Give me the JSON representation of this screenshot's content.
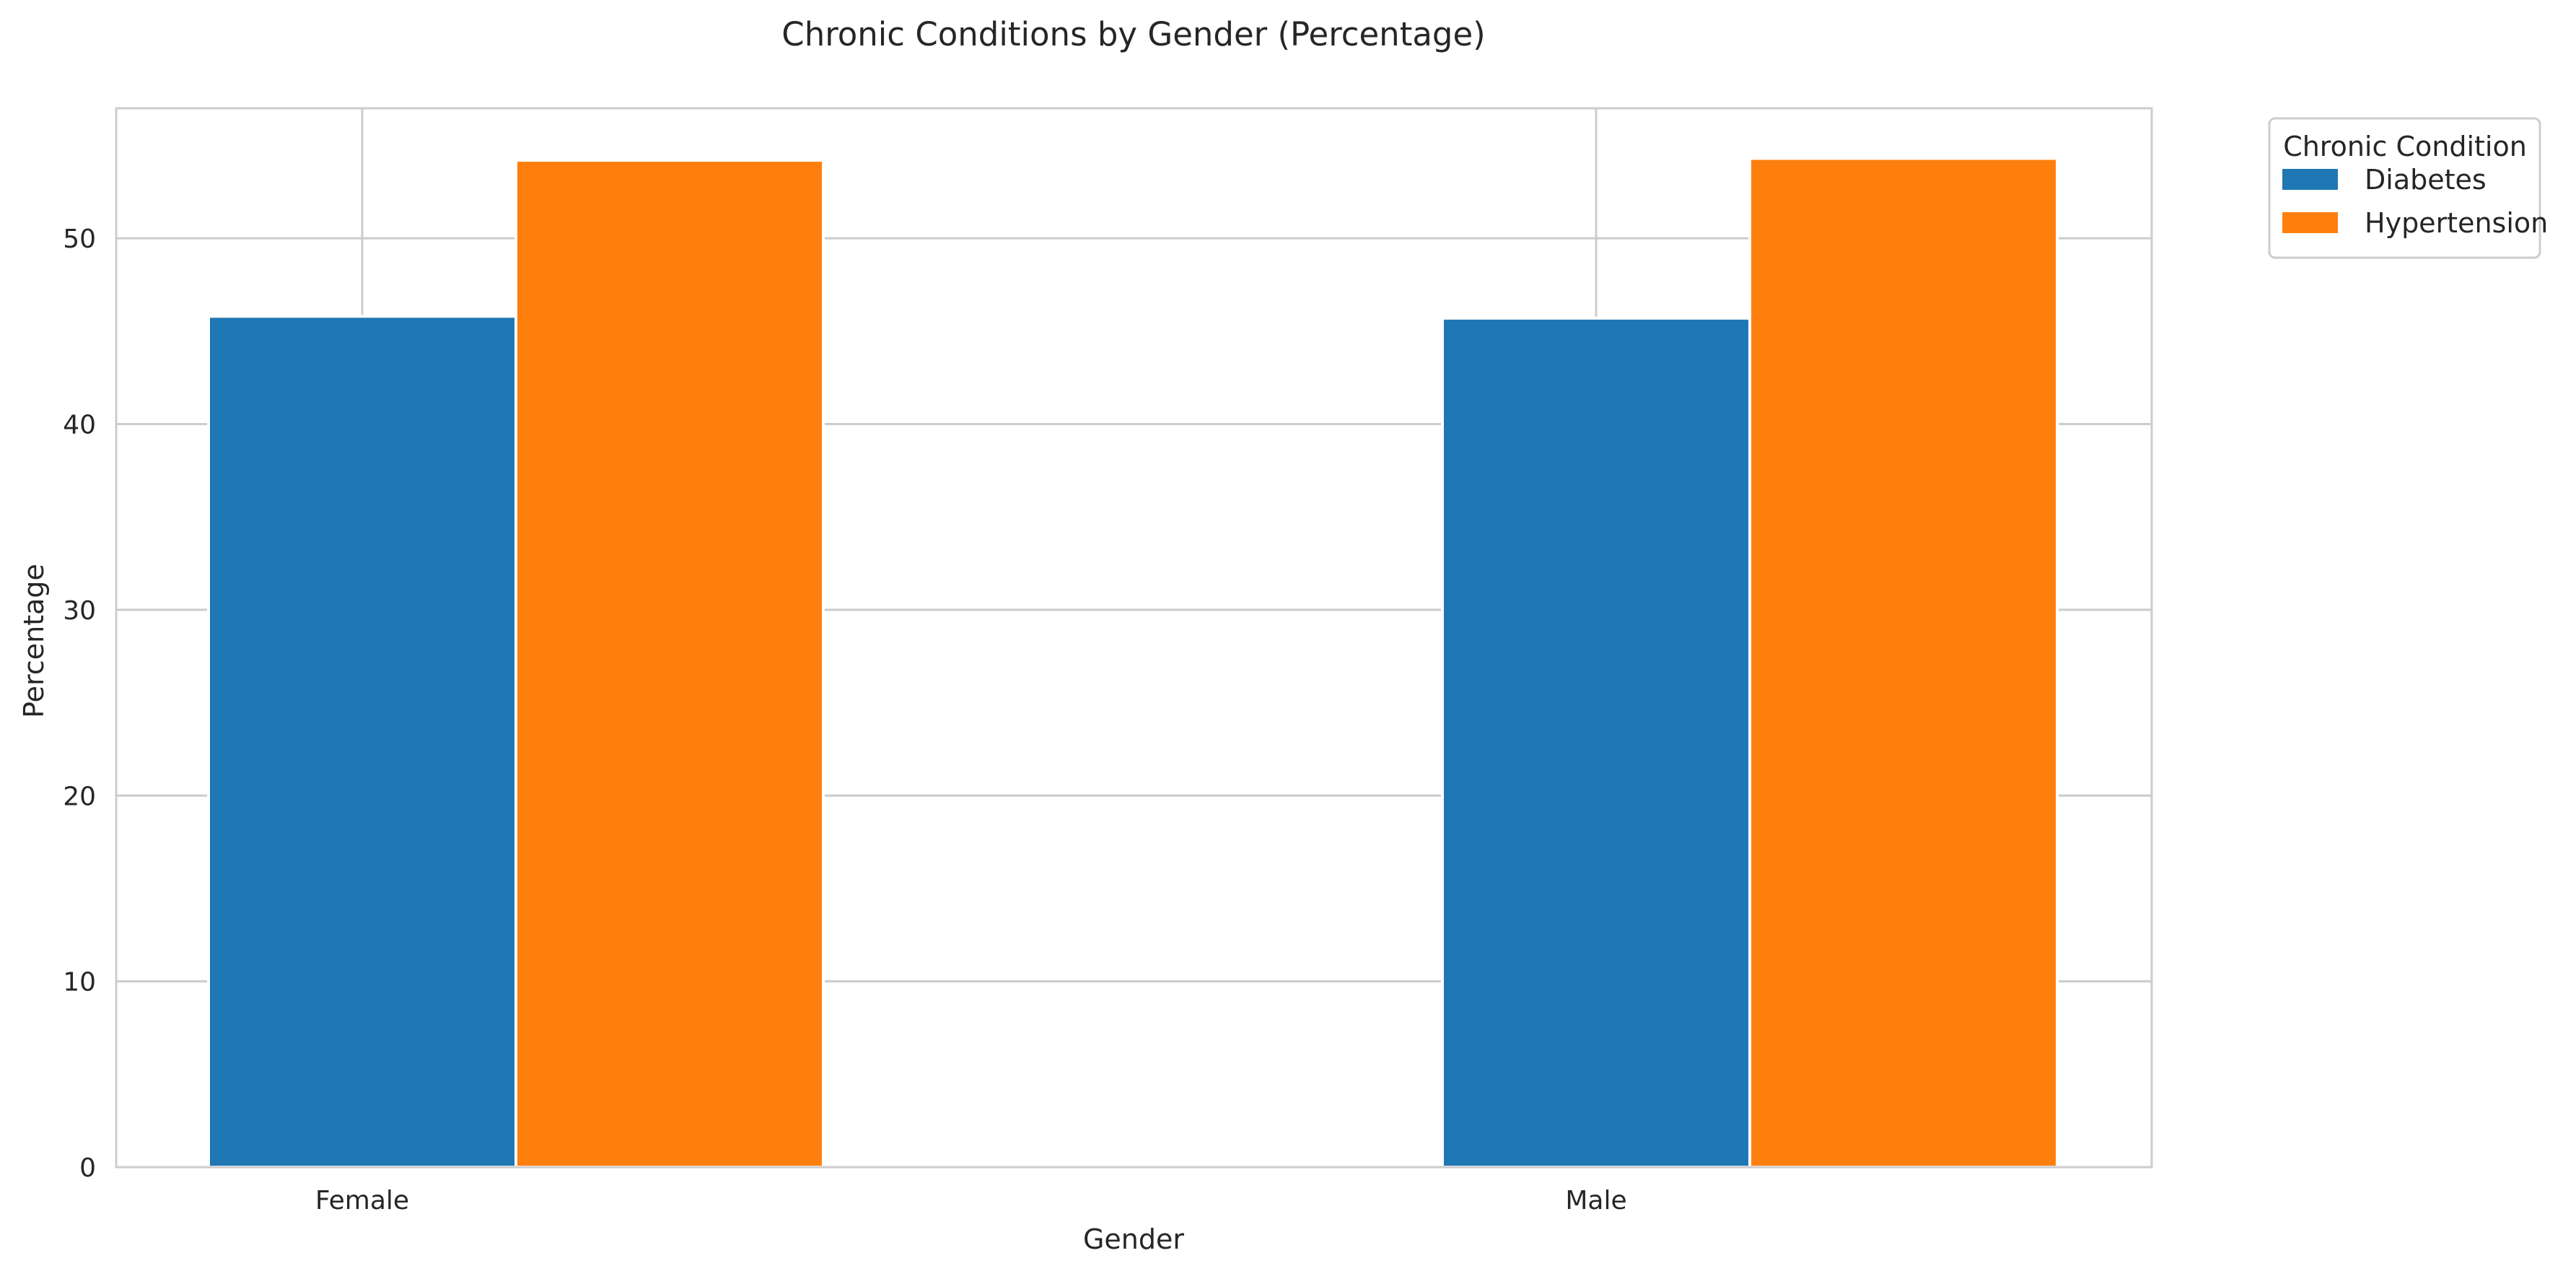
{
  "chart_data": {
    "type": "bar",
    "title": "Chronic Conditions by Gender (Percentage)",
    "xlabel": "Gender",
    "ylabel": "Percentage",
    "categories": [
      "Female",
      "Male"
    ],
    "series": [
      {
        "name": "Diabetes",
        "values": [
          45.8,
          45.7
        ]
      },
      {
        "name": "Hypertension",
        "values": [
          54.2,
          54.3
        ]
      }
    ],
    "ylim": [
      0,
      57
    ],
    "yticks": [
      0,
      10,
      20,
      30,
      40,
      50
    ],
    "grid": true,
    "legend": {
      "title": "Chronic Condition",
      "placement": "outside-top-right"
    },
    "colors": {
      "Diabetes": "#1f77b4",
      "Hypertension": "#ff7f0e",
      "grid": "#cccccc",
      "axes": "#cccccc",
      "text": "#262626"
    }
  }
}
